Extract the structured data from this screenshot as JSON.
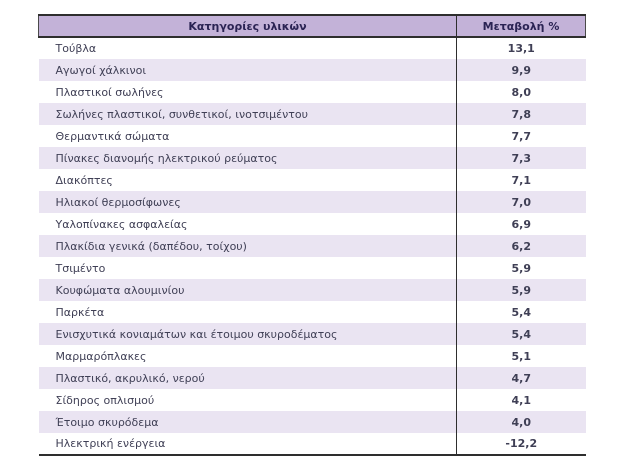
{
  "colors": {
    "header_bg": "#c3b2d8",
    "row_alt_bg": "#eae4f2",
    "row_bg": "#ffffff",
    "header_text": "#2a2353",
    "body_text": "#3f3f55",
    "border_dark": "#2e2e2e",
    "border_mid": "#4a4a4a"
  },
  "table": {
    "columns": [
      "Κατηγορίες υλικών",
      "Μεταβολή %"
    ],
    "rows": [
      {
        "label": "Τούβλα",
        "value": "13,1"
      },
      {
        "label": "Αγωγοί χάλκινοι",
        "value": "9,9"
      },
      {
        "label": "Πλαστικοί σωλήνες",
        "value": "8,0"
      },
      {
        "label": "Σωλήνες πλαστικοί, συνθετικοί, ινοτσιμέντου",
        "value": "7,8"
      },
      {
        "label": "Θερμαντικά σώματα",
        "value": "7,7"
      },
      {
        "label": "Πίνακες διανομής ηλεκτρικού ρεύματος",
        "value": "7,3"
      },
      {
        "label": "Διακόπτες",
        "value": "7,1"
      },
      {
        "label": "Ηλιακοί θερμοσίφωνες",
        "value": "7,0"
      },
      {
        "label": "Υαλοπίνακες ασφαλείας",
        "value": "6,9"
      },
      {
        "label": "Πλακίδια γενικά (δαπέδου, τοίχου)",
        "value": "6,2"
      },
      {
        "label": "Τσιμέντο",
        "value": "5,9"
      },
      {
        "label": "Κουφώματα αλουμινίου",
        "value": "5,9"
      },
      {
        "label": "Παρκέτα",
        "value": "5,4"
      },
      {
        "label": "Ενισχυτικά κονιαμάτων και έτοιμου σκυροδέματος",
        "value": "5,4"
      },
      {
        "label": "Μαρμαρόπλακες",
        "value": "5,1"
      },
      {
        "label": "Πλαστικό, ακρυλικό, νερού",
        "value": "4,7"
      },
      {
        "label": "Σίδηρος οπλισμού",
        "value": "4,1"
      },
      {
        "label": "Έτοιμο σκυρόδεμα",
        "value": "4,0"
      },
      {
        "label": "Ηλεκτρική ενέργεια",
        "value": "-12,2"
      }
    ]
  }
}
